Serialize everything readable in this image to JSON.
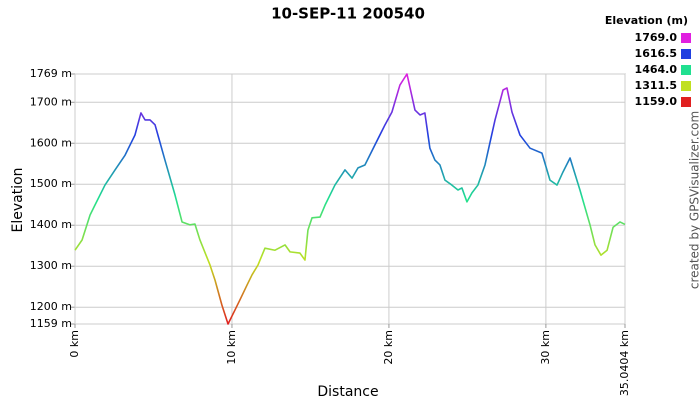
{
  "chart_data": {
    "type": "line",
    "title": "10-SEP-11 200540",
    "x_label": "Distance",
    "y_label": "Elevation",
    "credit": "created by GPSVisualizer.com",
    "legend_title": "Elevation (m)",
    "color_scale": [
      {
        "value": 1769,
        "label": "1769.0",
        "color": "#e020e0"
      },
      {
        "value": 1616.5,
        "label": "1616.5",
        "color": "#2040e0"
      },
      {
        "value": 1464,
        "label": "1464.0",
        "color": "#20e090"
      },
      {
        "value": 1311.5,
        "label": "1311.5",
        "color": "#c0e020"
      },
      {
        "value": 1159,
        "label": "1159.0",
        "color": "#e02020"
      }
    ],
    "xlim": [
      0,
      35.0404
    ],
    "ylim": [
      1159,
      1769
    ],
    "grid": true,
    "xticks": [
      {
        "value": 0,
        "label": "0 km"
      },
      {
        "value": 10,
        "label": "10 km"
      },
      {
        "value": 20,
        "label": "20 km"
      },
      {
        "value": 30,
        "label": "30 km"
      },
      {
        "value": 35.0404,
        "label": "35.0404 km"
      }
    ],
    "yticks": [
      {
        "value": 1159,
        "label": "1159 m"
      },
      {
        "value": 1200,
        "label": "1200 m"
      },
      {
        "value": 1300,
        "label": "1300 m"
      },
      {
        "value": 1400,
        "label": "1400 m"
      },
      {
        "value": 1500,
        "label": "1500 m"
      },
      {
        "value": 1600,
        "label": "1600 m"
      },
      {
        "value": 1700,
        "label": "1700 m"
      },
      {
        "value": 1769,
        "label": "1769 m"
      }
    ],
    "x": [
      0,
      0.45,
      0.96,
      1.27,
      1.91,
      2.55,
      3.19,
      3.82,
      4.2,
      4.46,
      4.78,
      5.1,
      5.73,
      6.37,
      6.82,
      7.33,
      7.64,
      7.96,
      8.6,
      8.92,
      9.36,
      9.75,
      10.19,
      10.51,
      10.96,
      11.28,
      11.66,
      12.1,
      12.74,
      13.38,
      13.7,
      14.33,
      14.65,
      14.84,
      15.1,
      15.61,
      15.93,
      16.56,
      17.2,
      17.65,
      18.03,
      18.47,
      19.11,
      19.75,
      20.19,
      20.7,
      21.15,
      21.66,
      21.98,
      22.29,
      22.61,
      22.93,
      23.25,
      23.57,
      24.01,
      24.4,
      24.65,
      24.97,
      25.29,
      25.67,
      26.12,
      26.76,
      27.27,
      27.52,
      27.84,
      28.35,
      28.99,
      29.75,
      30.26,
      30.71,
      31.09,
      31.54,
      32.17,
      32.81,
      33.13,
      33.51,
      33.9,
      34.28,
      34.72,
      35.0404
    ],
    "series": [
      {
        "name": "Elevation",
        "values": [
          1339,
          1364,
          1425,
          1449,
          1498,
          1535,
          1571,
          1620,
          1674,
          1657,
          1657,
          1645,
          1559,
          1474,
          1408,
          1401,
          1403,
          1364,
          1303,
          1266,
          1205,
          1159,
          1193,
          1218,
          1254,
          1279,
          1303,
          1344,
          1339,
          1352,
          1335,
          1332,
          1315,
          1388,
          1418,
          1420,
          1449,
          1498,
          1535,
          1515,
          1540,
          1547,
          1596,
          1645,
          1676,
          1742,
          1769,
          1681,
          1669,
          1674,
          1588,
          1559,
          1547,
          1510,
          1498,
          1486,
          1491,
          1457,
          1479,
          1498,
          1547,
          1657,
          1730,
          1735,
          1676,
          1620,
          1588,
          1576,
          1510,
          1498,
          1530,
          1564,
          1486,
          1401,
          1352,
          1327,
          1339,
          1395,
          1408,
          1402
        ]
      }
    ]
  }
}
